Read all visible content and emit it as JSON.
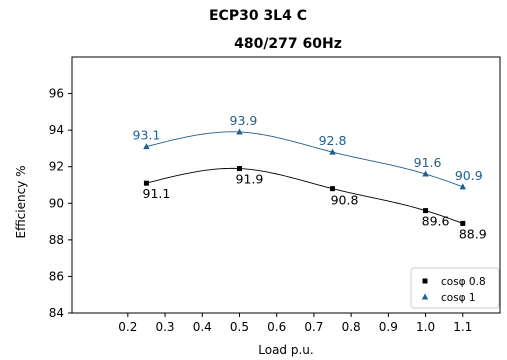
{
  "chart_data": {
    "type": "line",
    "title": "ECP30 3L4 C",
    "subtitle": "480/277 60Hz",
    "xlabel": "Load p.u.",
    "ylabel": "Efficiency %",
    "xlim": [
      0.05,
      1.2
    ],
    "ylim": [
      84,
      98
    ],
    "xticks": [
      "0.2",
      "0.3",
      "0.4",
      "0.5",
      "0.6",
      "0.7",
      "0.8",
      "0.9",
      "1.0",
      "1.1"
    ],
    "yticks": [
      "84",
      "86",
      "88",
      "90",
      "92",
      "94",
      "96"
    ],
    "grid": false,
    "legend": "bottom-right",
    "x": [
      0.25,
      0.5,
      0.75,
      1.0,
      1.1
    ],
    "series": [
      {
        "name": "cosφ 0.8",
        "marker": "square",
        "color": "#000000",
        "values": [
          91.1,
          91.9,
          90.8,
          89.6,
          88.9
        ],
        "labels": [
          "91.1",
          "91.9",
          "90.8",
          "89.6",
          "88.9"
        ]
      },
      {
        "name": "cosφ 1",
        "marker": "triangle",
        "color": "#1f5f8b",
        "values": [
          93.1,
          93.9,
          92.8,
          91.6,
          90.9
        ],
        "labels": [
          "93.1",
          "93.9",
          "92.8",
          "91.6",
          "90.9"
        ]
      }
    ]
  }
}
